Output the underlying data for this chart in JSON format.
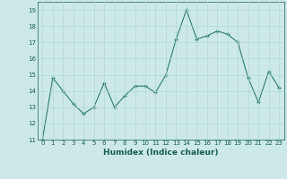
{
  "x": [
    0,
    1,
    2,
    3,
    4,
    5,
    6,
    7,
    8,
    9,
    10,
    11,
    12,
    13,
    14,
    15,
    16,
    17,
    18,
    19,
    20,
    21,
    22,
    23
  ],
  "y": [
    11.0,
    14.8,
    14.0,
    13.2,
    12.6,
    13.0,
    14.5,
    13.0,
    13.7,
    14.3,
    14.3,
    13.9,
    15.0,
    17.2,
    19.0,
    17.2,
    17.4,
    17.7,
    17.5,
    17.0,
    14.8,
    13.3,
    15.2,
    14.2
  ],
  "xlabel": "Humidex (Indice chaleur)",
  "ylabel": "",
  "xlim": [
    -0.5,
    23.5
  ],
  "ylim": [
    11,
    19.5
  ],
  "yticks": [
    11,
    12,
    13,
    14,
    15,
    16,
    17,
    18,
    19
  ],
  "xticks": [
    0,
    1,
    2,
    3,
    4,
    5,
    6,
    7,
    8,
    9,
    10,
    11,
    12,
    13,
    14,
    15,
    16,
    17,
    18,
    19,
    20,
    21,
    22,
    23
  ],
  "line_color": "#2e7d6e",
  "marker": "+",
  "bg_color": "#cce9e7",
  "grid_color": "#b0d8d5",
  "font_color": "#1a5c52"
}
